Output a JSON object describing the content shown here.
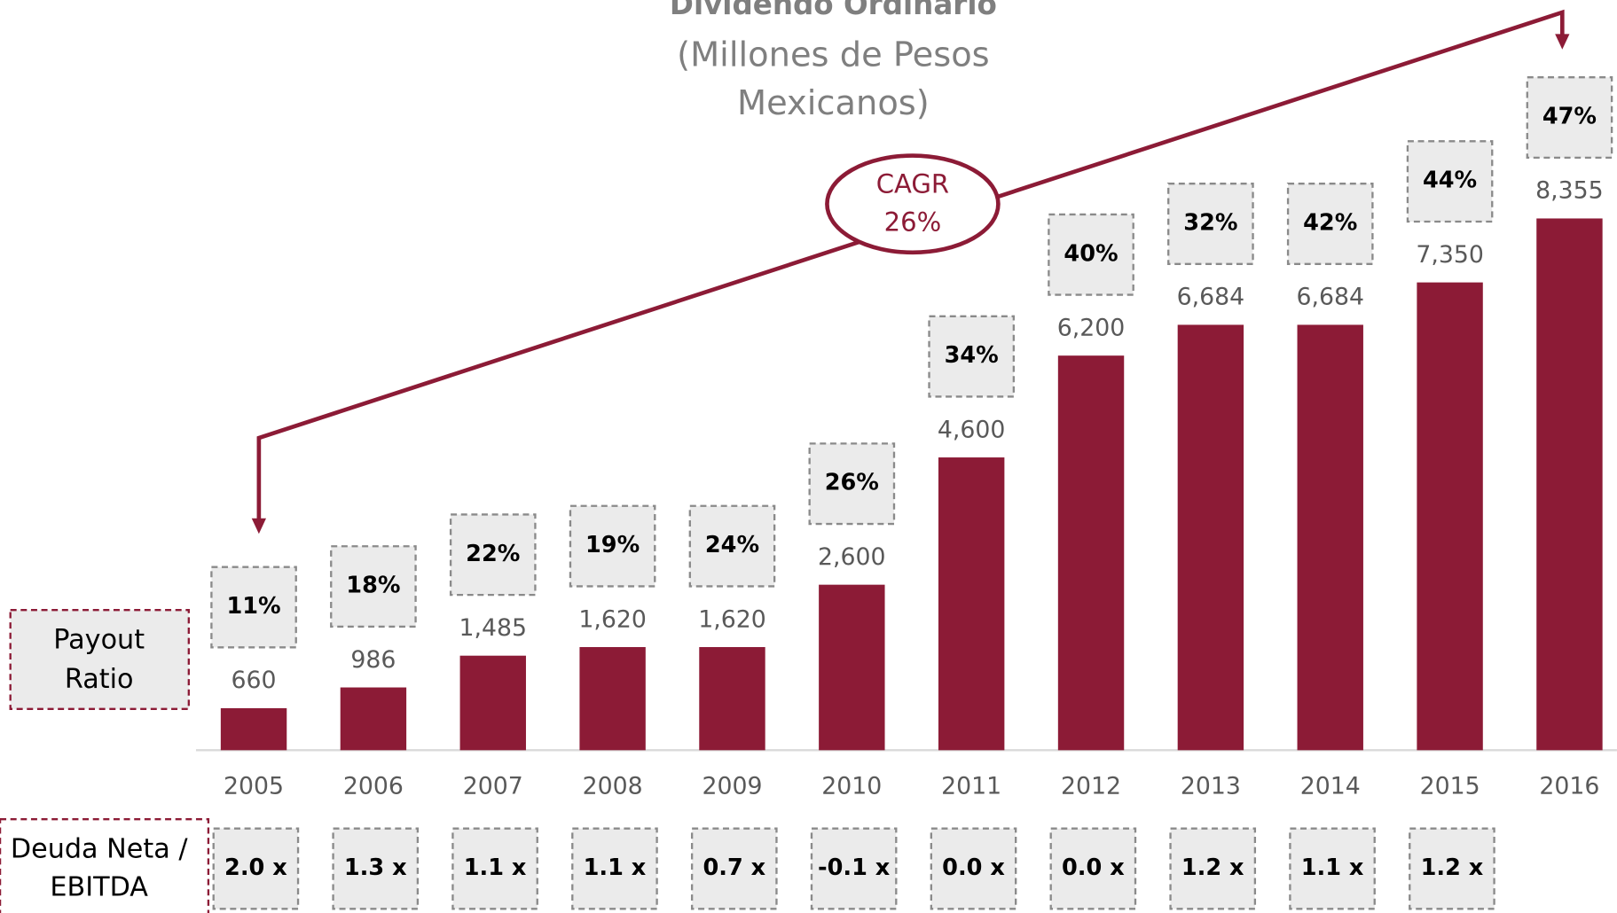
{
  "chart_data": {
    "type": "bar",
    "title": "Dividendo Ordinario",
    "subtitle": [
      "(Millones de Pesos",
      "Mexicanos)"
    ],
    "categories": [
      "2005",
      "2006",
      "2007",
      "2008",
      "2009",
      "2010",
      "2011",
      "2012",
      "2013",
      "2014",
      "2015",
      "2016"
    ],
    "values": [
      660,
      986,
      1485,
      1620,
      1620,
      2600,
      4600,
      6200,
      6684,
      6684,
      7350,
      8355
    ],
    "value_labels": [
      "660",
      "986",
      "1,485",
      "1,620",
      "1,620",
      "2,600",
      "4,600",
      "6,200",
      "6,684",
      "6,684",
      "7,350",
      "8,355"
    ],
    "color": "#8c1b36",
    "payout_ratio": {
      "label": [
        "Payout",
        "Ratio"
      ],
      "values": [
        11,
        18,
        22,
        19,
        24,
        26,
        34,
        40,
        32,
        42,
        44,
        47
      ],
      "value_labels": [
        "11%",
        "18%",
        "22%",
        "19%",
        "24%",
        "26%",
        "34%",
        "40%",
        "32%",
        "42%",
        "44%",
        "47%"
      ]
    },
    "net_debt_ebitda": {
      "label": [
        "Deuda Neta /",
        "EBITDA"
      ],
      "values": [
        2.0,
        1.3,
        1.1,
        1.1,
        0.7,
        -0.1,
        0.0,
        0.0,
        1.2,
        1.1,
        1.2,
        null
      ],
      "value_labels": [
        "2.0 x",
        "1.3 x",
        "1.1 x",
        "1.1 x",
        "0.7 x",
        "-0.1 x",
        "0.0 x",
        "0.0 x",
        "1.2 x",
        "1.1 x",
        "1.2 x",
        null
      ]
    },
    "annotations": [
      "CAGR",
      "26%"
    ]
  }
}
